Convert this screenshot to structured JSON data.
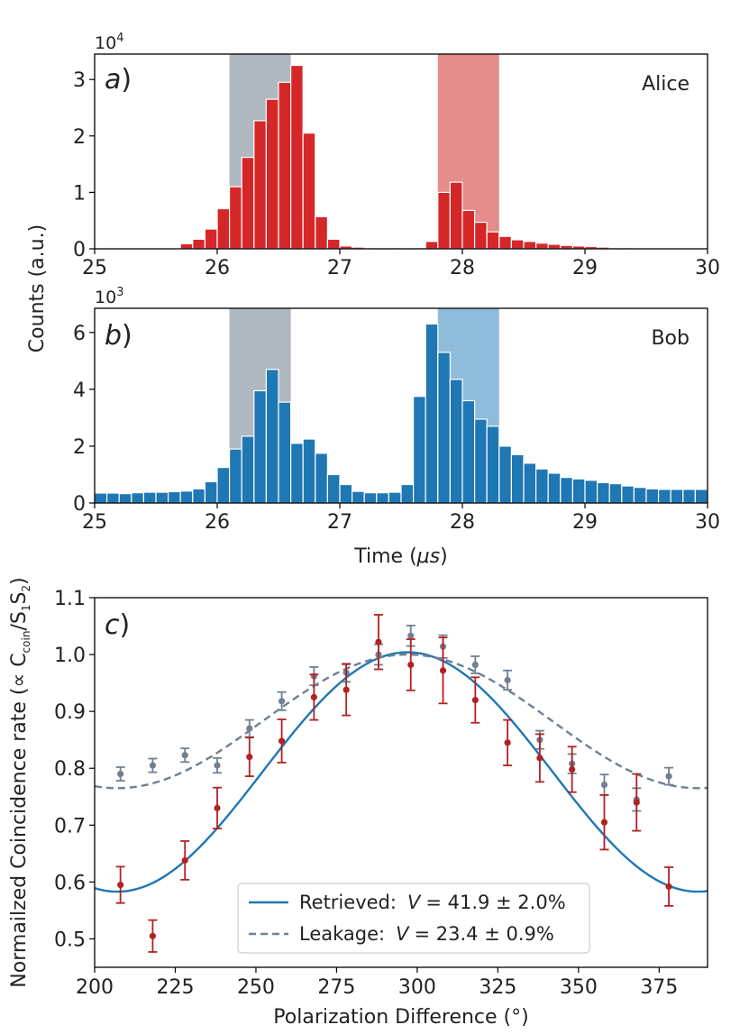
{
  "figure": {
    "shared_ylabel": "Counts (a.u.)",
    "colors": {
      "red": "#d62728",
      "blue": "#1f77b4",
      "gray_window": "#b0b8c1",
      "pink_window": "#e58c8c",
      "lightblue_window": "#8fbcdb",
      "gray_data": "#708090",
      "dark_red": "#b22222"
    }
  },
  "chart_data": [
    {
      "type": "bar",
      "panel": "a",
      "label_text": "a",
      "name": "Alice",
      "xlim": [
        25,
        30
      ],
      "xticks": [
        "25",
        "26",
        "27",
        "28",
        "29",
        "30"
      ],
      "ylim": [
        0,
        3.45
      ],
      "yticks": [
        "0",
        "1",
        "2",
        "3"
      ],
      "multiplier": "10",
      "multiplier_exp": "4",
      "bin_start": 25.6,
      "bin_width": 0.1,
      "values": [
        0.01,
        0.09,
        0.17,
        0.35,
        0.71,
        1.1,
        1.62,
        2.27,
        2.65,
        2.95,
        3.25,
        2.05,
        0.57,
        0.17,
        0.05,
        0.03,
        0.02,
        0.02,
        0.02,
        0.02,
        0.02,
        0.13,
        1.0,
        1.18,
        0.68,
        0.47,
        0.3,
        0.22,
        0.16,
        0.13,
        0.1,
        0.08,
        0.06,
        0.05,
        0.04,
        0.03,
        0.02,
        0.02,
        0.01,
        0.01
      ],
      "windows": [
        {
          "start": 26.1,
          "end": 26.6,
          "color": "#b0b8c1"
        },
        {
          "start": 27.8,
          "end": 28.3,
          "color": "#e58c8c"
        }
      ]
    },
    {
      "type": "bar",
      "panel": "b",
      "label_text": "b",
      "name": "Bob",
      "xlim": [
        25,
        30
      ],
      "xticks": [
        "25",
        "26",
        "27",
        "28",
        "29",
        "30"
      ],
      "ylim": [
        0,
        6.85
      ],
      "yticks": [
        "0",
        "2",
        "4",
        "6"
      ],
      "multiplier": "10",
      "multiplier_exp": "3",
      "xlabel_main": "Time (",
      "xlabel_unit": "μs",
      "xlabel_end": ")",
      "bin_start": 25.0,
      "bin_width": 0.1,
      "values": [
        0.35,
        0.35,
        0.33,
        0.36,
        0.38,
        0.38,
        0.4,
        0.42,
        0.5,
        0.75,
        1.25,
        1.9,
        2.35,
        3.95,
        4.7,
        3.55,
        2.1,
        2.25,
        1.75,
        1.0,
        0.65,
        0.41,
        0.36,
        0.36,
        0.38,
        0.65,
        3.75,
        6.3,
        5.3,
        4.35,
        3.6,
        2.95,
        2.7,
        2.0,
        1.7,
        1.4,
        1.2,
        1.05,
        0.9,
        0.85,
        0.8,
        0.72,
        0.68,
        0.6,
        0.55,
        0.5,
        0.48,
        0.48,
        0.48,
        0.48
      ],
      "windows": [
        {
          "start": 26.1,
          "end": 26.6,
          "color": "#b0b8c1"
        },
        {
          "start": 27.8,
          "end": 28.3,
          "color": "#8fbcdb"
        }
      ]
    },
    {
      "type": "scatter",
      "panel": "c",
      "label_text": "c",
      "xlabel": "Polarization Difference (°)",
      "ylabel_main": "Normailzed Coincidence rate (∝ C",
      "ylabel_coin": "coin",
      "ylabel_s1": "/S",
      "ylabel_sub1": "1",
      "ylabel_s2": "S",
      "ylabel_sub2": "2",
      "ylabel_end": ")",
      "xlim": [
        200,
        390
      ],
      "xticks": [
        "200",
        "225",
        "250",
        "275",
        "300",
        "325",
        "350",
        "375"
      ],
      "ylim": [
        0.45,
        1.1
      ],
      "yticks": [
        "0.5",
        "0.6",
        "0.7",
        "0.8",
        "0.9",
        "1.0",
        "1.1"
      ],
      "series": [
        {
          "name": "Leakage points",
          "color": "#708090",
          "x": [
            208,
            218,
            228,
            238,
            248,
            258,
            268,
            278,
            288,
            298,
            308,
            318,
            328,
            338,
            348,
            358,
            368,
            378
          ],
          "y": [
            0.79,
            0.805,
            0.823,
            0.805,
            0.87,
            0.918,
            0.962,
            0.968,
            1.0,
            1.033,
            1.014,
            0.982,
            0.955,
            0.85,
            0.808,
            0.771,
            0.745,
            0.786
          ],
          "err": [
            0.012,
            0.012,
            0.012,
            0.013,
            0.015,
            0.016,
            0.016,
            0.016,
            0.018,
            0.018,
            0.02,
            0.015,
            0.017,
            0.016,
            0.017,
            0.018,
            0.02,
            0.015
          ]
        },
        {
          "name": "Retrieved points",
          "color": "#b22222",
          "x": [
            208,
            218,
            228,
            238,
            248,
            258,
            268,
            278,
            288,
            298,
            308,
            318,
            328,
            338,
            348,
            358,
            368,
            378
          ],
          "y": [
            0.595,
            0.505,
            0.638,
            0.73,
            0.82,
            0.848,
            0.925,
            0.938,
            1.022,
            0.982,
            0.972,
            0.92,
            0.845,
            0.818,
            0.798,
            0.705,
            0.74,
            0.592
          ],
          "err": [
            0.032,
            0.028,
            0.034,
            0.036,
            0.034,
            0.038,
            0.04,
            0.045,
            0.048,
            0.045,
            0.058,
            0.04,
            0.04,
            0.042,
            0.04,
            0.048,
            0.05,
            0.034
          ]
        }
      ],
      "fits": [
        {
          "name": "Retrieved",
          "color": "#1f77b4",
          "dashed": false,
          "center": 297,
          "ymin": 0.583,
          "ymax": 1.004,
          "label_name": "Retrieved:",
          "label_V": "V",
          "label_value": "= 41.9 ± 2.0%"
        },
        {
          "name": "Leakage",
          "color": "#708090",
          "dashed": true,
          "center": 297,
          "ymin": 0.765,
          "ymax": 1.0,
          "label_name": "Leakage:",
          "label_V": "V",
          "label_value": "= 23.4 ± 0.9%"
        }
      ]
    }
  ]
}
